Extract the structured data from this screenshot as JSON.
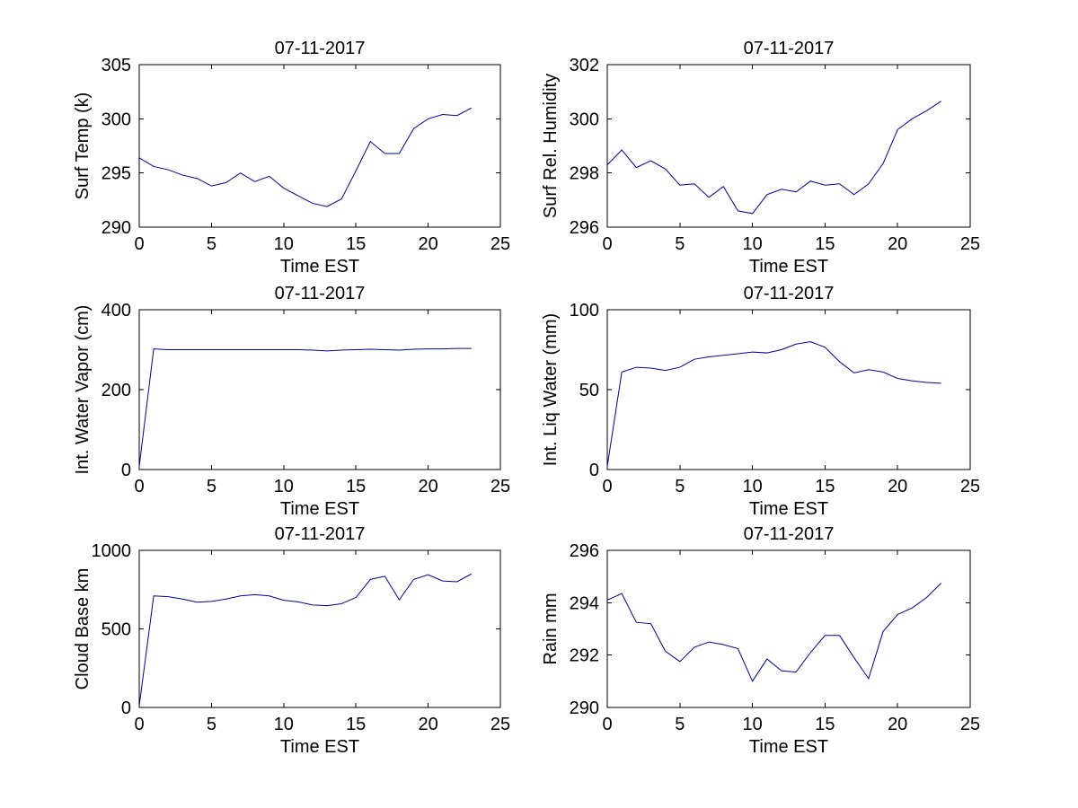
{
  "figure": {
    "background": "#ffffff",
    "line_color": "#0000A0",
    "axis_color": "#000000"
  },
  "chart_data": [
    {
      "type": "line",
      "title": "07-11-2017",
      "xlabel": "Time EST",
      "ylabel": "Surf Temp (k)",
      "xlim": [
        0,
        25
      ],
      "ylim": [
        290,
        305
      ],
      "xticks": [
        0,
        5,
        10,
        15,
        20,
        25
      ],
      "yticks": [
        290,
        295,
        300,
        305
      ],
      "grid": false,
      "legend": null,
      "x": [
        0,
        1,
        2,
        3,
        4,
        5,
        6,
        7,
        8,
        9,
        10,
        11,
        12,
        13,
        14,
        15,
        16,
        17,
        18,
        19,
        20,
        21,
        22,
        23
      ],
      "values": [
        296.4,
        295.6,
        295.3,
        294.8,
        294.5,
        293.8,
        294.1,
        295.0,
        294.2,
        294.7,
        293.6,
        292.9,
        292.2,
        291.9,
        292.6,
        295.2,
        297.9,
        296.8,
        296.8,
        299.1,
        300.0,
        300.4,
        300.3,
        301.0
      ]
    },
    {
      "type": "line",
      "title": "07-11-2017",
      "xlabel": "Time EST",
      "ylabel": "Surf Rel. Humidity",
      "xlim": [
        0,
        25
      ],
      "ylim": [
        296,
        302
      ],
      "xticks": [
        0,
        5,
        10,
        15,
        20,
        25
      ],
      "yticks": [
        296,
        298,
        300,
        302
      ],
      "grid": false,
      "legend": null,
      "x": [
        0,
        1,
        2,
        3,
        4,
        5,
        6,
        7,
        8,
        9,
        10,
        11,
        12,
        13,
        14,
        15,
        16,
        17,
        18,
        19,
        20,
        21,
        22,
        23
      ],
      "values": [
        298.3,
        298.85,
        298.2,
        298.45,
        298.15,
        297.55,
        297.6,
        297.1,
        297.5,
        296.6,
        296.5,
        297.2,
        297.4,
        297.3,
        297.7,
        297.55,
        297.6,
        297.2,
        297.6,
        298.35,
        299.6,
        300.0,
        300.3,
        300.65
      ]
    },
    {
      "type": "line",
      "title": "07-11-2017",
      "xlabel": "Time EST",
      "ylabel": "Int. Water Vapor (cm)",
      "xlim": [
        0,
        25
      ],
      "ylim": [
        0,
        400
      ],
      "xticks": [
        0,
        5,
        10,
        15,
        20,
        25
      ],
      "yticks": [
        0,
        200,
        400
      ],
      "grid": false,
      "legend": null,
      "x": [
        0,
        1,
        2,
        3,
        4,
        5,
        6,
        7,
        8,
        9,
        10,
        11,
        12,
        13,
        14,
        15,
        16,
        17,
        18,
        19,
        20,
        21,
        22,
        23
      ],
      "values": [
        8,
        302,
        300,
        300,
        300,
        300,
        300,
        300,
        300,
        300,
        300,
        300,
        299,
        297,
        299,
        300,
        301,
        300,
        299,
        301,
        302,
        302,
        303,
        303
      ]
    },
    {
      "type": "line",
      "title": "07-11-2017",
      "xlabel": "Time EST",
      "ylabel": "Int. Liq Water (mm)",
      "xlim": [
        0,
        25
      ],
      "ylim": [
        0,
        100
      ],
      "xticks": [
        0,
        5,
        10,
        15,
        20,
        25
      ],
      "yticks": [
        0,
        50,
        100
      ],
      "grid": false,
      "legend": null,
      "x": [
        0,
        1,
        2,
        3,
        4,
        5,
        6,
        7,
        8,
        9,
        10,
        11,
        12,
        13,
        14,
        15,
        16,
        17,
        18,
        19,
        20,
        21,
        22,
        23
      ],
      "values": [
        2,
        61,
        64,
        63.5,
        62,
        64,
        69,
        70.5,
        71.5,
        72.5,
        73.5,
        73,
        75,
        78.5,
        80,
        76.5,
        67.5,
        60.5,
        62.5,
        61,
        57,
        55.5,
        54.5,
        54
      ]
    },
    {
      "type": "line",
      "title": "07-11-2017",
      "xlabel": "Time EST",
      "ylabel": "Cloud Base km",
      "xlim": [
        0,
        25
      ],
      "ylim": [
        0,
        1000
      ],
      "xticks": [
        0,
        5,
        10,
        15,
        20,
        25
      ],
      "yticks": [
        0,
        500,
        1000
      ],
      "grid": false,
      "legend": null,
      "x": [
        0,
        1,
        2,
        3,
        4,
        5,
        6,
        7,
        8,
        9,
        10,
        11,
        12,
        13,
        14,
        15,
        16,
        17,
        18,
        19,
        20,
        21,
        22,
        23
      ],
      "values": [
        10,
        710,
        705,
        690,
        670,
        675,
        690,
        710,
        718,
        710,
        682,
        672,
        652,
        648,
        660,
        700,
        815,
        835,
        685,
        815,
        845,
        805,
        800,
        850
      ]
    },
    {
      "type": "line",
      "title": "07-11-2017",
      "xlabel": "Time EST",
      "ylabel": "Rain mm",
      "xlim": [
        0,
        25
      ],
      "ylim": [
        290,
        296
      ],
      "xticks": [
        0,
        5,
        10,
        15,
        20,
        25
      ],
      "yticks": [
        290,
        292,
        294,
        296
      ],
      "grid": false,
      "legend": null,
      "x": [
        0,
        1,
        2,
        3,
        4,
        5,
        6,
        7,
        8,
        9,
        10,
        11,
        12,
        13,
        14,
        15,
        16,
        17,
        18,
        19,
        20,
        21,
        22,
        23
      ],
      "values": [
        294.1,
        294.35,
        293.25,
        293.2,
        292.15,
        291.75,
        292.3,
        292.5,
        292.4,
        292.25,
        291.0,
        291.85,
        291.4,
        291.35,
        292.1,
        292.75,
        292.75,
        291.9,
        291.1,
        292.9,
        293.55,
        293.8,
        294.2,
        294.75
      ]
    }
  ]
}
